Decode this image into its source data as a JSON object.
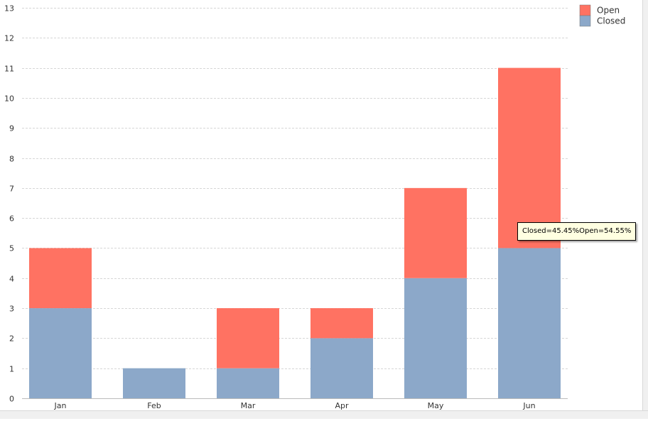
{
  "chart_data": {
    "type": "bar",
    "stacked": true,
    "categories": [
      "Jan",
      "Feb",
      "Mar",
      "Apr",
      "May",
      "Jun"
    ],
    "series": [
      {
        "name": "Closed",
        "values": [
          3,
          1,
          1,
          2,
          4,
          5
        ]
      },
      {
        "name": "Open",
        "values": [
          2,
          0,
          2,
          1,
          3,
          6
        ]
      }
    ],
    "ylim": [
      0,
      13
    ],
    "yticks": [
      0,
      1,
      2,
      3,
      4,
      5,
      6,
      7,
      8,
      9,
      10,
      11,
      12,
      13
    ],
    "grid": true,
    "legend_position": "top-right",
    "legend": [
      "Open",
      "Closed"
    ]
  },
  "colors": {
    "Open": "#ff7262",
    "Closed": "#8ca8c9",
    "grid": "#d6d6d6",
    "axis": "#bbbbbb",
    "text": "#333333"
  },
  "tooltip": {
    "text": "Closed=45.45%Open=54.55%"
  }
}
